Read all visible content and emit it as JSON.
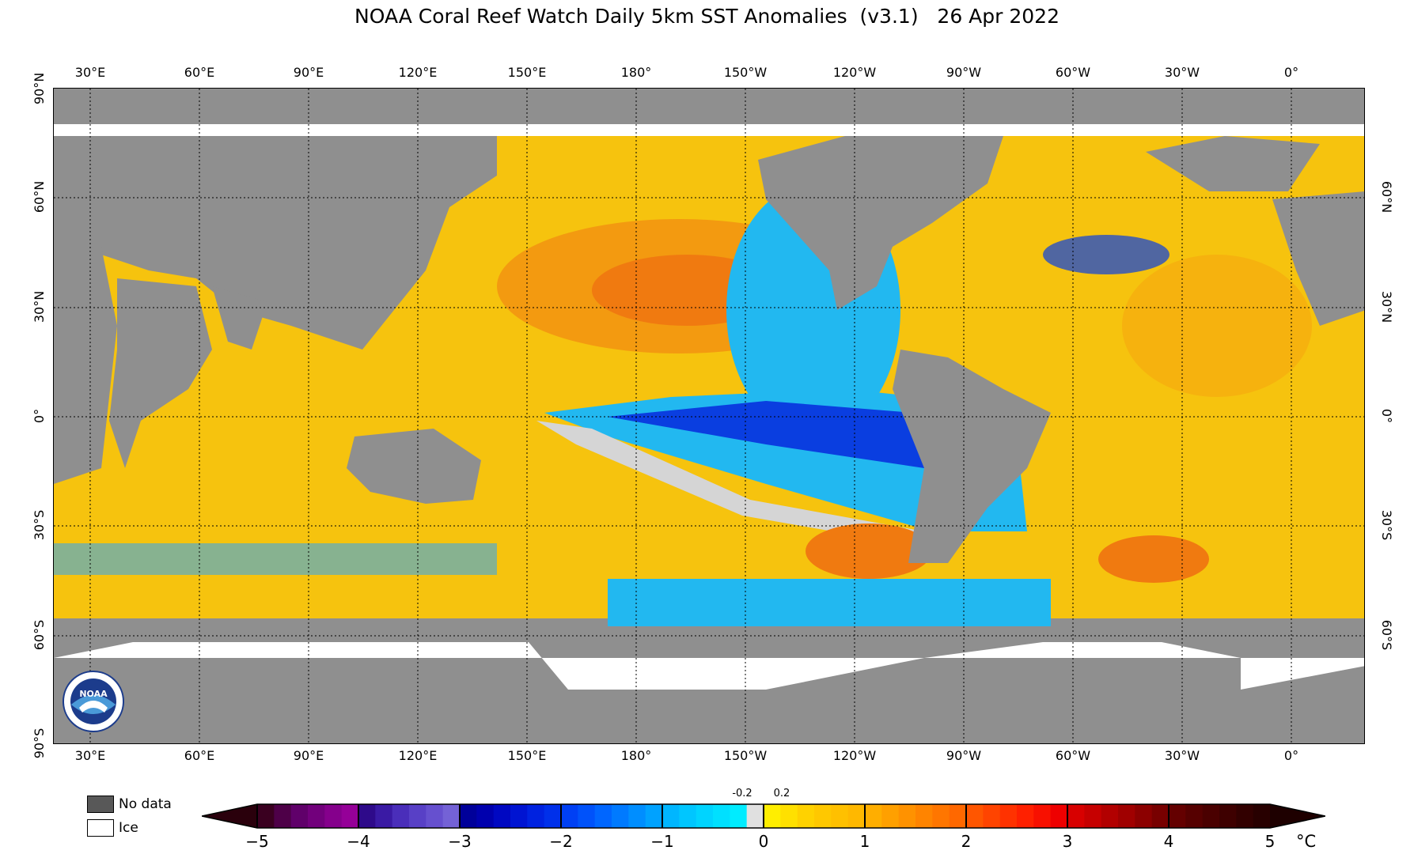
{
  "title": "NOAA Coral Reef Watch Daily 5km SST Anomalies  (v3.1)   26 Apr 2022",
  "map": {
    "lon_labels": [
      "30°E",
      "60°E",
      "90°E",
      "120°E",
      "150°E",
      "180°",
      "150°W",
      "120°W",
      "90°W",
      "60°W",
      "30°W",
      "0°"
    ],
    "lat_labels_left": [
      "90°N",
      "60°N",
      "30°N",
      "0°",
      "30°S",
      "60°S",
      "90°S"
    ],
    "lat_labels_right": [
      "60°N",
      "30°N",
      "0°",
      "30°S",
      "60°S"
    ],
    "colors": {
      "land": "#8f8f8f",
      "ice": "#ffffff",
      "ocean_warm": "#f6c30e",
      "ocean_hot": "#f07a10",
      "ocean_neutral": "#d5d5d5",
      "ocean_cool": "#22b8f0",
      "ocean_cold": "#0a3ee0"
    }
  },
  "legend": {
    "no_data_label": "No data",
    "ice_label": "Ice",
    "no_data_color": "#585858",
    "ice_color": "#ffffff"
  },
  "colorbar": {
    "ticks": [
      "−5",
      "−4",
      "−3",
      "−2",
      "−1",
      "0",
      "1",
      "2",
      "3",
      "4",
      "5"
    ],
    "small_ticks": [
      "-0.2",
      "0.2"
    ],
    "unit": "°C",
    "segments": [
      [
        "#3a0020",
        "#4e0048",
        "#60006a",
        "#72007c",
        "#85008c",
        "#950098"
      ],
      [
        "#2e0a8a",
        "#3a1aa4",
        "#4a2eba",
        "#5840c6",
        "#6650cf",
        "#7462d6"
      ],
      [
        "#00009a",
        "#0000ae",
        "#0008c2",
        "#0014d2",
        "#0022e0",
        "#0030ea"
      ],
      [
        "#0040f4",
        "#0052fa",
        "#0066ff",
        "#007aff",
        "#008eff",
        "#00a2ff"
      ],
      [
        "#00b6ff",
        "#00c6ff",
        "#00d4ff",
        "#00e0ff",
        "#00ecff",
        "#e0e0e0"
      ],
      [
        "#ffee00",
        "#ffe000",
        "#ffd200",
        "#ffc800",
        "#ffc000",
        "#ffb800"
      ],
      [
        "#ffae00",
        "#ffa000",
        "#ff9200",
        "#ff8400",
        "#ff7600",
        "#ff6800"
      ],
      [
        "#ff5600",
        "#ff4400",
        "#ff3200",
        "#ff2000",
        "#f81000",
        "#ee0000"
      ],
      [
        "#d80000",
        "#c60000",
        "#b20000",
        "#a00000",
        "#8c0000",
        "#780000"
      ],
      [
        "#640000",
        "#560000",
        "#4a0000",
        "#3e0000",
        "#320000",
        "#280000"
      ]
    ]
  },
  "logo": {
    "text": "NOAA"
  }
}
